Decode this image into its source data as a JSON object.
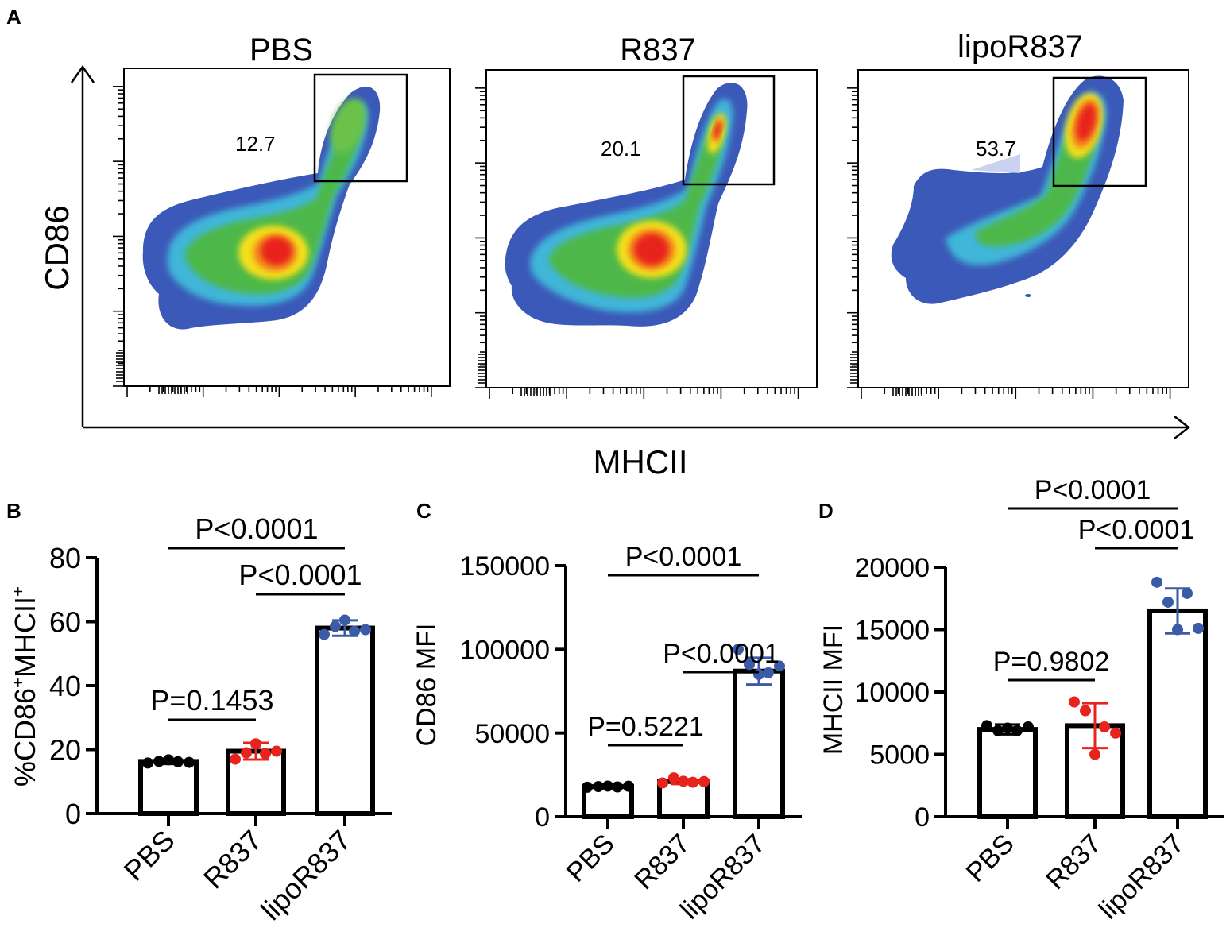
{
  "figure": {
    "panel_labels": [
      "A",
      "B",
      "C",
      "D"
    ]
  },
  "chart_data": [
    {
      "panel": "A",
      "type": "scatter",
      "subtype": "flow-cytometry-density",
      "xlabel": "MHCII",
      "ylabel": "CD86",
      "plots": [
        {
          "title": "PBS",
          "gate_percent": "12.7"
        },
        {
          "title": "R837",
          "gate_percent": "20.1"
        },
        {
          "title": "lipoR837",
          "gate_percent": "53.7"
        }
      ]
    },
    {
      "panel": "B",
      "type": "bar",
      "ylabel_parts": [
        "%CD86",
        "+",
        "MHCII",
        "+"
      ],
      "ylim": [
        0,
        80
      ],
      "yticks": [
        0,
        20,
        40,
        60,
        80
      ],
      "categories": [
        "PBS",
        "R837",
        "lipoR837"
      ],
      "values": [
        16.3,
        19.5,
        58
      ],
      "sd": [
        0.8,
        2.6,
        2.4
      ],
      "points": [
        [
          15.8,
          16.3,
          16.8,
          16.2,
          16.0
        ],
        [
          17.0,
          19.0,
          21.8,
          18.8,
          19.5
        ],
        [
          56.0,
          58.5,
          60.5,
          57.0,
          57.5
        ]
      ],
      "point_colors": [
        "#000000",
        "#e8231c",
        "#3a5ba8"
      ],
      "comparisons": [
        {
          "pair": [
            0,
            1
          ],
          "label": "P=0.1453"
        },
        {
          "pair": [
            1,
            2
          ],
          "label": "P<0.0001"
        },
        {
          "pair": [
            0,
            2
          ],
          "label": "P<0.0001"
        }
      ]
    },
    {
      "panel": "C",
      "type": "bar",
      "ylabel": "CD86 MFI",
      "ylim": [
        0,
        150000
      ],
      "yticks": [
        0,
        50000,
        100000,
        150000
      ],
      "categories": [
        "PBS",
        "R837",
        "lipoR837"
      ],
      "values": [
        18000,
        21000,
        87000
      ],
      "sd": [
        800,
        1500,
        8000
      ],
      "points": [
        [
          17600,
          18000,
          18300,
          17800,
          18200
        ],
        [
          20200,
          23200,
          21200,
          20600,
          21000
        ],
        [
          100000,
          91000,
          85000,
          86000,
          90000
        ]
      ],
      "point_colors": [
        "#000000",
        "#e8231c",
        "#3a5ba8"
      ],
      "comparisons": [
        {
          "pair": [
            0,
            1
          ],
          "label": "P=0.5221"
        },
        {
          "pair": [
            1,
            2
          ],
          "label": "P<0.0001"
        },
        {
          "pair": [
            0,
            2
          ],
          "label": "P<0.0001"
        }
      ]
    },
    {
      "panel": "D",
      "type": "bar",
      "ylabel": "MHCII MFI",
      "ylim": [
        0,
        20000
      ],
      "yticks": [
        0,
        5000,
        10000,
        15000,
        20000
      ],
      "categories": [
        "PBS",
        "R837",
        "lipoR837"
      ],
      "values": [
        7000,
        7300,
        16500
      ],
      "sd": [
        400,
        1800,
        1800
      ],
      "points": [
        [
          7300,
          6900,
          7100,
          6900,
          7200
        ],
        [
          9200,
          8500,
          5000,
          7200,
          6700
        ],
        [
          18800,
          17200,
          15000,
          17900,
          15100
        ]
      ],
      "point_colors": [
        "#000000",
        "#e8231c",
        "#3a5ba8"
      ],
      "comparisons": [
        {
          "pair": [
            0,
            1
          ],
          "label": "P=0.9802"
        },
        {
          "pair": [
            1,
            2
          ],
          "label": "P<0.0001"
        },
        {
          "pair": [
            0,
            2
          ],
          "label": "P<0.0001"
        }
      ]
    }
  ]
}
